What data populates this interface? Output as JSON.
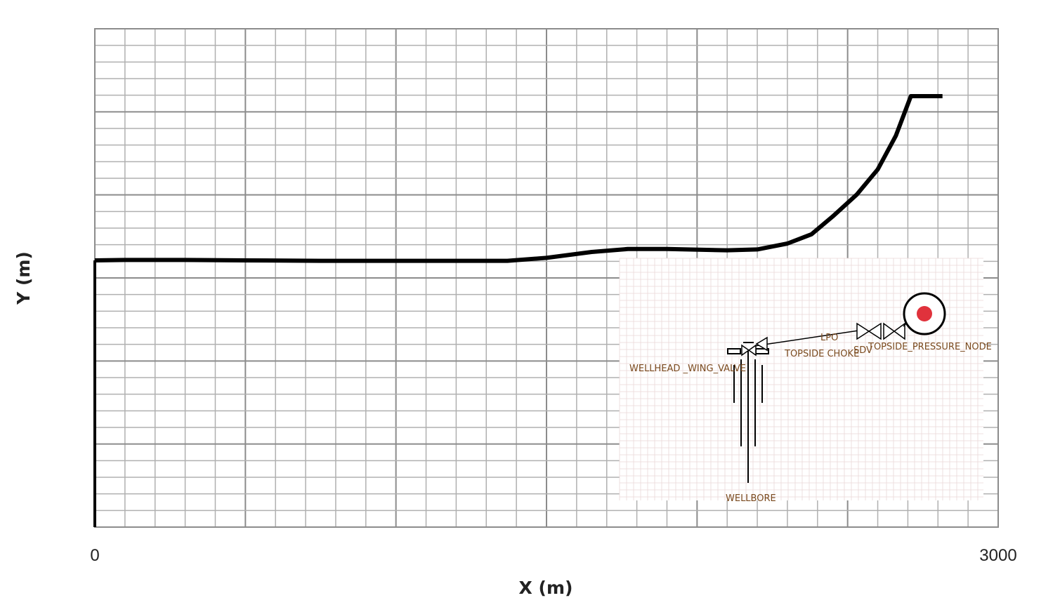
{
  "chart_data": {
    "type": "line",
    "xlabel": "X (m)",
    "ylabel": "Y (m)",
    "xlim": [
      0,
      3000
    ],
    "x_tick_labels": [
      "0",
      "3000"
    ],
    "grid": true,
    "series": [
      {
        "x": [
          0,
          100,
          300,
          500,
          750,
          1000,
          1200,
          1370,
          1500,
          1650,
          1770,
          1900,
          2100,
          2200,
          2300,
          2380,
          2450,
          2530,
          2600,
          2660,
          2710,
          2815
        ],
        "y": [
          0,
          0.5,
          0.5,
          0,
          -0.5,
          -0.5,
          -0.5,
          -0.5,
          3,
          10,
          13.5,
          13.5,
          12,
          13,
          20,
          31,
          52,
          78,
          108,
          148,
          195,
          195
        ]
      }
    ],
    "colors": {
      "line": "#000000",
      "grid_major": "#8c8c8c",
      "grid_minor": "#b0b0b0",
      "axis": "#000000"
    }
  },
  "inset": {
    "labels": {
      "wellhead": "WELLHEAD _WING_VALVE",
      "choke": "TOPSIDE CHOKE",
      "lpo": "LPO",
      "sdv": "SDV",
      "node": "TOPSIDE_PRESSURE_NODE",
      "wellbore": "WELLBORE"
    },
    "colors": {
      "label": "#7a4a1e",
      "node_dot": "#e0323c",
      "grid": "#ead8d8"
    }
  }
}
